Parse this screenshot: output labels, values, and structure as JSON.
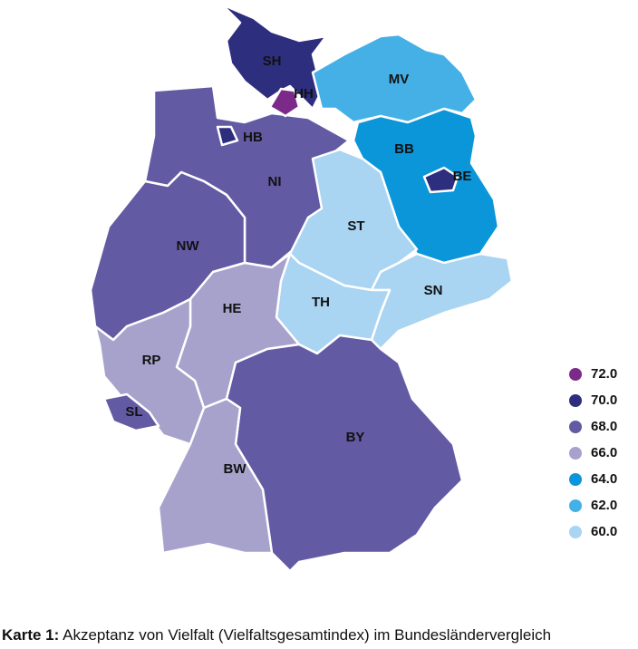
{
  "map": {
    "regions": [
      {
        "code": "SH",
        "color": "#2e2e7f"
      },
      {
        "code": "HH",
        "color": "#7b2a8a"
      },
      {
        "code": "MV",
        "color": "#45b0e6"
      },
      {
        "code": "HB",
        "color": "#2e2e7f"
      },
      {
        "code": "NI",
        "color": "#625aa3"
      },
      {
        "code": "BB",
        "color": "#0a96d8"
      },
      {
        "code": "BE",
        "color": "#2e2e7f"
      },
      {
        "code": "NW",
        "color": "#625aa3"
      },
      {
        "code": "ST",
        "color": "#a9d4f2"
      },
      {
        "code": "SN",
        "color": "#a9d4f2"
      },
      {
        "code": "TH",
        "color": "#a9d4f2"
      },
      {
        "code": "HE",
        "color": "#a7a2cc"
      },
      {
        "code": "RP",
        "color": "#a7a2cc"
      },
      {
        "code": "SL",
        "color": "#625aa3"
      },
      {
        "code": "BY",
        "color": "#625aa3"
      },
      {
        "code": "BW",
        "color": "#a7a2cc"
      }
    ],
    "legend": [
      {
        "label": "72.0",
        "color": "#7b2a8a"
      },
      {
        "label": "70.0",
        "color": "#2e2e7f"
      },
      {
        "label": "68.0",
        "color": "#625aa3"
      },
      {
        "label": "66.0",
        "color": "#a7a2cc"
      },
      {
        "label": "64.0",
        "color": "#0a96d8"
      },
      {
        "label": "62.0",
        "color": "#45b0e6"
      },
      {
        "label": "60.0",
        "color": "#a9d4f2"
      }
    ]
  },
  "caption": {
    "prefix": "Karte 1:",
    "text": "Akzeptanz von Vielfalt (Vielfaltsgesamtindex) im Bundesländervergleich"
  }
}
